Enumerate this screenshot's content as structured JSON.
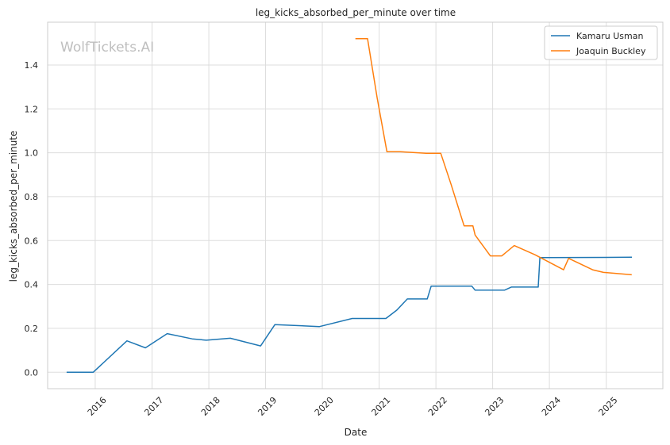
{
  "chart_data": {
    "type": "line",
    "title": "leg_kicks_absorbed_per_minute over time",
    "xlabel": "Date",
    "ylabel": "leg_kicks_absorbed_per_minute",
    "watermark": "WolfTickets.AI",
    "x_tick_labels": [
      "2016",
      "2017",
      "2018",
      "2019",
      "2020",
      "2021",
      "2022",
      "2023",
      "2024",
      "2025"
    ],
    "y_tick_labels": [
      "0.0",
      "0.2",
      "0.4",
      "0.6",
      "0.8",
      "1.0",
      "1.2",
      "1.4"
    ],
    "xlim": [
      "2015-03-01",
      "2025-12-31"
    ],
    "ylim": [
      -0.075,
      1.595
    ],
    "grid": true,
    "legend_position": "top-right",
    "series": [
      {
        "name": "Kamaru Usman",
        "color": "#1f77b4",
        "points": [
          [
            "2015-07-01",
            0.0
          ],
          [
            "2015-12-19",
            0.0
          ],
          [
            "2016-07-23",
            0.143
          ],
          [
            "2016-11-19",
            0.111
          ],
          [
            "2017-04-08",
            0.176
          ],
          [
            "2017-09-16",
            0.152
          ],
          [
            "2017-12-16",
            0.146
          ],
          [
            "2018-05-19",
            0.155
          ],
          [
            "2018-11-30",
            0.12
          ],
          [
            "2019-03-02",
            0.217
          ],
          [
            "2019-12-14",
            0.208
          ],
          [
            "2020-07-11",
            0.245
          ],
          [
            "2021-02-13",
            0.245
          ],
          [
            "2021-04-24",
            0.283
          ],
          [
            "2021-07-01",
            0.334
          ],
          [
            "2021-10-01",
            0.334
          ],
          [
            "2021-11-06",
            0.334
          ],
          [
            "2021-12-01",
            0.392
          ],
          [
            "2022-08-20",
            0.392
          ],
          [
            "2022-09-10",
            0.374
          ],
          [
            "2023-03-18",
            0.374
          ],
          [
            "2023-05-01",
            0.388
          ],
          [
            "2023-10-21",
            0.388
          ],
          [
            "2023-11-01",
            0.522
          ],
          [
            "2025-06-15",
            0.524
          ]
        ]
      },
      {
        "name": "Joaquin Buckley",
        "color": "#ff7f0e",
        "points": [
          [
            "2020-08-01",
            1.52
          ],
          [
            "2020-10-18",
            1.52
          ],
          [
            "2020-12-19",
            1.25
          ],
          [
            "2021-02-20",
            1.005
          ],
          [
            "2021-05-15",
            1.005
          ],
          [
            "2021-10-30",
            0.998
          ],
          [
            "2022-02-01",
            0.998
          ],
          [
            "2022-04-09",
            0.855
          ],
          [
            "2022-07-01",
            0.667
          ],
          [
            "2022-08-27",
            0.667
          ],
          [
            "2022-09-10",
            0.625
          ],
          [
            "2022-12-17",
            0.53
          ],
          [
            "2023-03-01",
            0.53
          ],
          [
            "2023-05-20",
            0.577
          ],
          [
            "2023-10-01",
            0.535
          ],
          [
            "2024-04-01",
            0.467
          ],
          [
            "2024-05-04",
            0.519
          ],
          [
            "2024-10-05",
            0.467
          ],
          [
            "2024-12-14",
            0.455
          ],
          [
            "2025-06-14",
            0.444
          ]
        ]
      }
    ]
  }
}
